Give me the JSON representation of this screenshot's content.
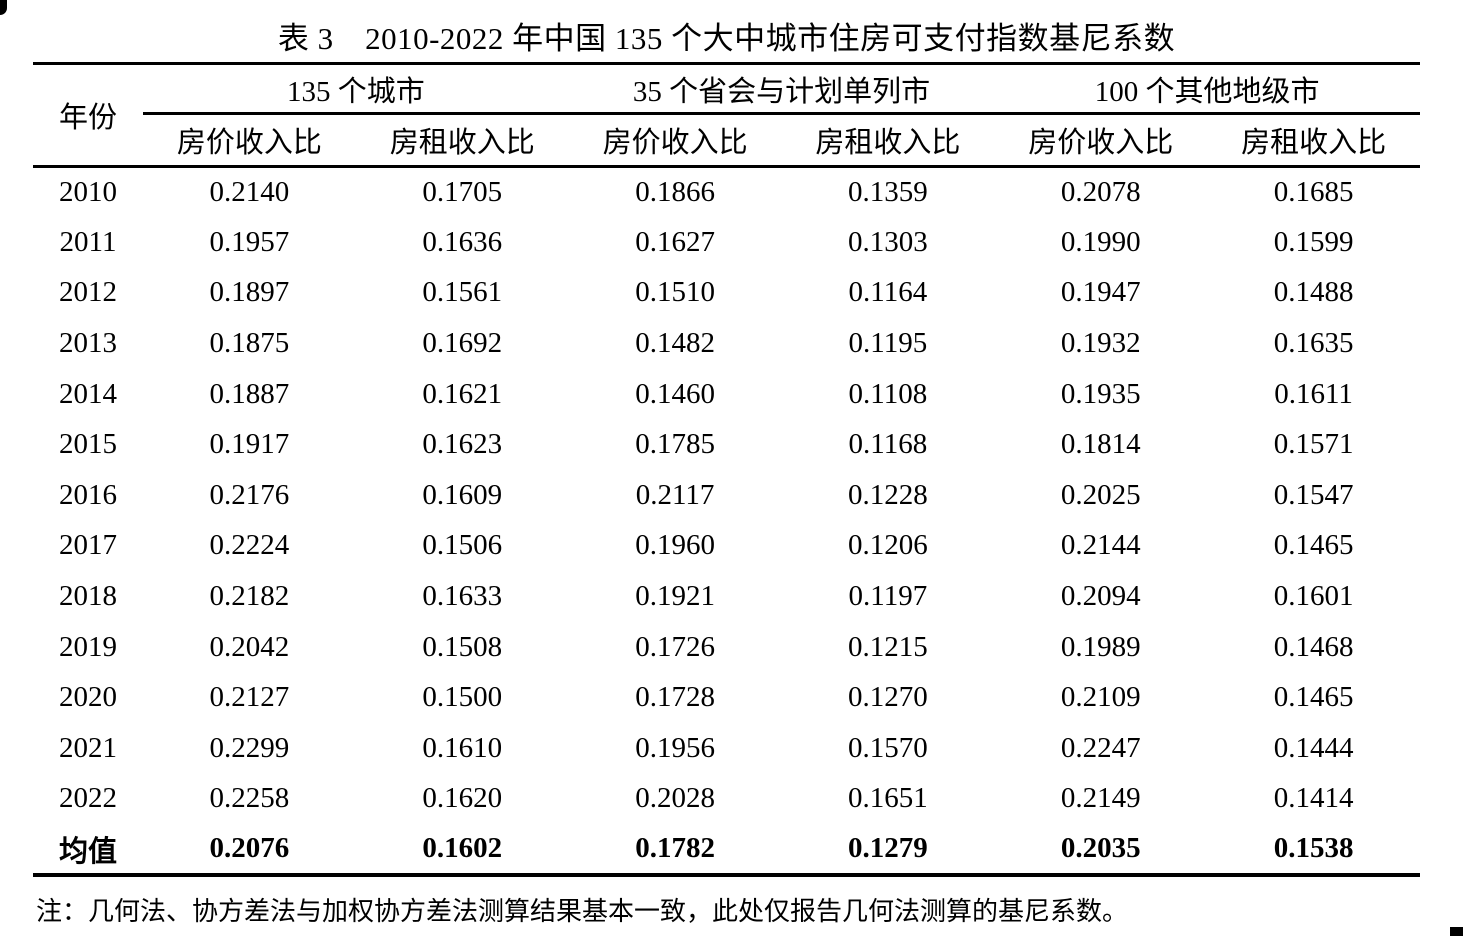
{
  "page": {
    "title": "表 3　2010-2022 年中国 135 个大中城市住房可支付指数基尼系数",
    "note": "注：几何法、协方差法与加权协方差法测算结果基本一致，此处仅报告几何法测算的基尼系数。"
  },
  "colors": {
    "text": "#000000",
    "background": "#ffffff",
    "rule": "#000000"
  },
  "table": {
    "year_header": "年份",
    "groups": [
      {
        "label": "135 个城市"
      },
      {
        "label": "35 个省会与计划单列市"
      },
      {
        "label": "100 个其他地级市"
      }
    ],
    "sub_headers": [
      "房价收入比",
      "房租收入比",
      "房价收入比",
      "房租收入比",
      "房价收入比",
      "房租收入比"
    ],
    "rows": [
      {
        "year": "2010",
        "values": [
          "0.2140",
          "0.1705",
          "0.1866",
          "0.1359",
          "0.2078",
          "0.1685"
        ]
      },
      {
        "year": "2011",
        "values": [
          "0.1957",
          "0.1636",
          "0.1627",
          "0.1303",
          "0.1990",
          "0.1599"
        ]
      },
      {
        "year": "2012",
        "values": [
          "0.1897",
          "0.1561",
          "0.1510",
          "0.1164",
          "0.1947",
          "0.1488"
        ]
      },
      {
        "year": "2013",
        "values": [
          "0.1875",
          "0.1692",
          "0.1482",
          "0.1195",
          "0.1932",
          "0.1635"
        ]
      },
      {
        "year": "2014",
        "values": [
          "0.1887",
          "0.1621",
          "0.1460",
          "0.1108",
          "0.1935",
          "0.1611"
        ]
      },
      {
        "year": "2015",
        "values": [
          "0.1917",
          "0.1623",
          "0.1785",
          "0.1168",
          "0.1814",
          "0.1571"
        ]
      },
      {
        "year": "2016",
        "values": [
          "0.2176",
          "0.1609",
          "0.2117",
          "0.1228",
          "0.2025",
          "0.1547"
        ]
      },
      {
        "year": "2017",
        "values": [
          "0.2224",
          "0.1506",
          "0.1960",
          "0.1206",
          "0.2144",
          "0.1465"
        ]
      },
      {
        "year": "2018",
        "values": [
          "0.2182",
          "0.1633",
          "0.1921",
          "0.1197",
          "0.2094",
          "0.1601"
        ]
      },
      {
        "year": "2019",
        "values": [
          "0.2042",
          "0.1508",
          "0.1726",
          "0.1215",
          "0.1989",
          "0.1468"
        ]
      },
      {
        "year": "2020",
        "values": [
          "0.2127",
          "0.1500",
          "0.1728",
          "0.1270",
          "0.2109",
          "0.1465"
        ]
      },
      {
        "year": "2021",
        "values": [
          "0.2299",
          "0.1610",
          "0.1956",
          "0.1570",
          "0.2247",
          "0.1444"
        ]
      },
      {
        "year": "2022",
        "values": [
          "0.2258",
          "0.1620",
          "0.2028",
          "0.1651",
          "0.2149",
          "0.1414"
        ]
      }
    ],
    "mean_row": {
      "label": "均值",
      "values": [
        "0.2076",
        "0.1602",
        "0.1782",
        "0.1279",
        "0.2035",
        "0.1538"
      ]
    }
  }
}
